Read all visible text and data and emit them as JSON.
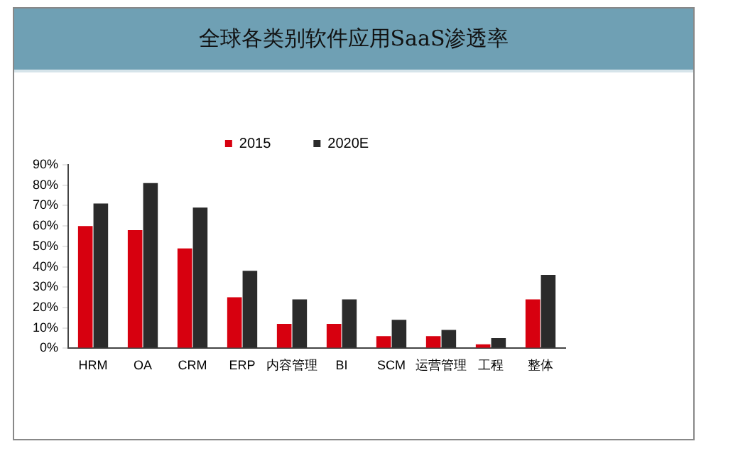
{
  "chart_data": {
    "type": "bar",
    "title": "全球各类别软件应用SaaS渗透率",
    "categories": [
      "HRM",
      "OA",
      "CRM",
      "ERP",
      "内容管理",
      "BI",
      "SCM",
      "运营管理",
      "工程",
      "整体"
    ],
    "series": [
      {
        "name": "2015",
        "color": "#d7000f",
        "values": [
          60,
          58,
          49,
          25,
          12,
          12,
          6,
          6,
          2,
          24
        ]
      },
      {
        "name": "2020E",
        "color": "#2b2b2b",
        "values": [
          71,
          81,
          69,
          38,
          24,
          24,
          14,
          9,
          5,
          36
        ]
      }
    ],
    "ylim": [
      0,
      90
    ],
    "yticks": [
      {
        "value": 0,
        "label": "0%"
      },
      {
        "value": 10,
        "label": "10%"
      },
      {
        "value": 20,
        "label": "20%"
      },
      {
        "value": 30,
        "label": "30%"
      },
      {
        "value": 40,
        "label": "40%"
      },
      {
        "value": 50,
        "label": "50%"
      },
      {
        "value": 60,
        "label": "60%"
      },
      {
        "value": 70,
        "label": "70%"
      },
      {
        "value": 80,
        "label": "80%"
      },
      {
        "value": 90,
        "label": "90%"
      }
    ],
    "grid": false,
    "legend": "top"
  }
}
